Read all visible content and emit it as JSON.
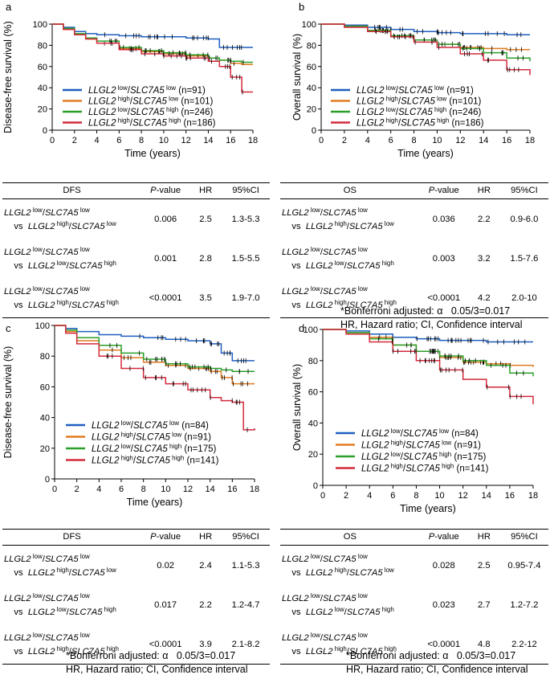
{
  "chart_data": [
    {
      "panel": "a",
      "type": "line",
      "ylabel": "Disease-free survival (%)",
      "xlabel": "Time (years)",
      "xlim": [
        0,
        18
      ],
      "ylim": [
        0,
        100
      ],
      "xticks": [
        "0",
        "2",
        "4",
        "6",
        "8",
        "10",
        "12",
        "14",
        "16",
        "18"
      ],
      "yticks": [
        "0",
        "20",
        "40",
        "60",
        "80",
        "100"
      ],
      "series": [
        {
          "name": "LLGL2 low/SLC7A5 low (n=91)",
          "gene1": "LLGL2",
          "s1": "low",
          "gene2": "SLC7A5",
          "s2": "low",
          "n": "(n=91)",
          "color": "#1f5fbf",
          "x": [
            0,
            1,
            2,
            3,
            4,
            6,
            8,
            10,
            12,
            14,
            15,
            16,
            17,
            18
          ],
          "y": [
            100,
            97,
            93,
            91,
            90,
            89,
            88,
            88,
            87,
            86,
            78,
            78,
            78,
            78
          ]
        },
        {
          "name": "LLGL2 high/SLC7A5 low (n=101)",
          "gene1": "LLGL2",
          "s1": "high",
          "gene2": "SLC7A5",
          "s2": "low",
          "n": "(n=101)",
          "color": "#e07b20",
          "x": [
            0,
            1,
            2,
            3,
            4,
            6,
            8,
            10,
            12,
            14,
            15,
            16,
            17,
            18
          ],
          "y": [
            100,
            95,
            90,
            86,
            82,
            77,
            74,
            72,
            70,
            68,
            66,
            63,
            62,
            62
          ]
        },
        {
          "name": "LLGL2 low/SLC7A5 high (n=246)",
          "gene1": "LLGL2",
          "s1": "low",
          "gene2": "SLC7A5",
          "s2": "high",
          "n": "(n=246)",
          "color": "#2aa02a",
          "x": [
            0,
            1,
            2,
            3,
            4,
            6,
            8,
            10,
            12,
            14,
            15,
            16,
            17,
            18
          ],
          "y": [
            100,
            96,
            91,
            87,
            84,
            78,
            75,
            73,
            71,
            68,
            66,
            65,
            64,
            64
          ]
        },
        {
          "name": "LLGL2 high/SLC7A5 high (n=186)",
          "gene1": "LLGL2",
          "s1": "high",
          "gene2": "SLC7A5",
          "s2": "high",
          "n": "(n=186)",
          "color": "#d42a3c",
          "x": [
            0,
            1,
            2,
            3,
            4,
            6,
            8,
            10,
            12,
            14,
            15,
            16,
            17,
            18
          ],
          "y": [
            100,
            95,
            90,
            86,
            82,
            76,
            72,
            70,
            68,
            65,
            60,
            50,
            36,
            36
          ]
        }
      ]
    },
    {
      "panel": "b",
      "type": "line",
      "ylabel": "Overall survival (%)",
      "xlabel": "Time (years)",
      "xlim": [
        0,
        18
      ],
      "ylim": [
        0,
        100
      ],
      "xticks": [
        "0",
        "2",
        "4",
        "6",
        "8",
        "10",
        "12",
        "14",
        "16",
        "18"
      ],
      "yticks": [
        "0",
        "20",
        "40",
        "60",
        "80",
        "100"
      ],
      "series": [
        {
          "name": "LLGL2 low/SLC7A5 low (n=91)",
          "gene1": "LLGL2",
          "s1": "low",
          "gene2": "SLC7A5",
          "s2": "low",
          "n": "(n=91)",
          "color": "#1f5fbf",
          "x": [
            0,
            2,
            4,
            6,
            8,
            10,
            12,
            14,
            16,
            18
          ],
          "y": [
            100,
            99,
            97,
            95,
            93,
            92,
            91,
            91,
            90,
            90
          ]
        },
        {
          "name": "LLGL2 high/SLC7A5 low (n=101)",
          "gene1": "LLGL2",
          "s1": "high",
          "gene2": "SLC7A5",
          "s2": "low",
          "n": "(n=101)",
          "color": "#e07b20",
          "x": [
            0,
            2,
            4,
            6,
            8,
            10,
            12,
            14,
            16,
            18
          ],
          "y": [
            100,
            98,
            94,
            89,
            85,
            81,
            78,
            77,
            76,
            76
          ]
        },
        {
          "name": "LLGL2 low/SLC7A5 high (n=246)",
          "gene1": "LLGL2",
          "s1": "low",
          "gene2": "SLC7A5",
          "s2": "high",
          "n": "(n=246)",
          "color": "#2aa02a",
          "x": [
            0,
            2,
            4,
            6,
            8,
            10,
            12,
            14,
            16,
            18
          ],
          "y": [
            100,
            98,
            94,
            89,
            85,
            81,
            77,
            73,
            68,
            65
          ]
        },
        {
          "name": "LLGL2 high/SLC7A5 high (n=186)",
          "gene1": "LLGL2",
          "s1": "high",
          "gene2": "SLC7A5",
          "s2": "high",
          "n": "(n=186)",
          "color": "#d42a3c",
          "x": [
            0,
            2,
            4,
            6,
            8,
            10,
            12,
            14,
            16,
            18
          ],
          "y": [
            100,
            97,
            93,
            88,
            83,
            78,
            72,
            66,
            57,
            52
          ]
        }
      ]
    },
    {
      "panel": "c",
      "type": "line",
      "ylabel": "Disease-free survival (%)",
      "xlabel": "Time (years)",
      "xlim": [
        0,
        18
      ],
      "ylim": [
        0,
        100
      ],
      "xticks": [
        "0",
        "2",
        "4",
        "6",
        "8",
        "10",
        "12",
        "14",
        "16",
        "18"
      ],
      "yticks": [
        "0",
        "20",
        "40",
        "60",
        "80",
        "100"
      ],
      "series": [
        {
          "name": "LLGL2 low/SLC7A5 low (n=84)",
          "gene1": "LLGL2",
          "s1": "low",
          "gene2": "SLC7A5",
          "s2": "low",
          "n": "(n=84)",
          "color": "#1f5fbf",
          "x": [
            0,
            1,
            2,
            4,
            6,
            8,
            10,
            12,
            14,
            15,
            16,
            17,
            18
          ],
          "y": [
            100,
            98,
            96,
            94,
            93,
            92,
            91,
            90,
            88,
            82,
            77,
            77,
            77
          ]
        },
        {
          "name": "LLGL2 high/SLC7A5 low (n=91)",
          "gene1": "LLGL2",
          "s1": "high",
          "gene2": "SLC7A5",
          "s2": "low",
          "n": "(n=91)",
          "color": "#e07b20",
          "x": [
            0,
            1,
            2,
            4,
            6,
            8,
            10,
            12,
            14,
            15,
            16,
            17,
            18
          ],
          "y": [
            100,
            96,
            90,
            84,
            79,
            76,
            74,
            72,
            70,
            66,
            62,
            62,
            62
          ]
        },
        {
          "name": "LLGL2 low/SLC7A5 high (n=175)",
          "gene1": "LLGL2",
          "s1": "low",
          "gene2": "SLC7A5",
          "s2": "high",
          "n": "(n=175)",
          "color": "#2aa02a",
          "x": [
            0,
            1,
            2,
            4,
            6,
            8,
            10,
            12,
            14,
            15,
            16,
            17,
            18
          ],
          "y": [
            100,
            97,
            92,
            87,
            82,
            78,
            75,
            73,
            72,
            71,
            70,
            70,
            70
          ]
        },
        {
          "name": "LLGL2 high/SLC7A5 high (n=141)",
          "gene1": "LLGL2",
          "s1": "high",
          "gene2": "SLC7A5",
          "s2": "high",
          "n": "(n=141)",
          "color": "#d42a3c",
          "x": [
            0,
            1,
            2,
            4,
            6,
            8,
            10,
            12,
            14,
            15,
            16,
            17,
            18
          ],
          "y": [
            100,
            95,
            88,
            80,
            72,
            66,
            62,
            58,
            53,
            51,
            50,
            32,
            33
          ]
        }
      ]
    },
    {
      "panel": "d",
      "type": "line",
      "ylabel": "Overall survival (%)",
      "xlabel": "Time (years)",
      "xlim": [
        0,
        18
      ],
      "ylim": [
        0,
        100
      ],
      "xticks": [
        "0",
        "2",
        "4",
        "6",
        "8",
        "10",
        "12",
        "14",
        "16",
        "18"
      ],
      "yticks": [
        "0",
        "20",
        "40",
        "60",
        "80",
        "100"
      ],
      "series": [
        {
          "name": "LLGL2 low/SLC7A5 low (n=84)",
          "gene1": "LLGL2",
          "s1": "low",
          "gene2": "SLC7A5",
          "s2": "low",
          "n": "(n=84)",
          "color": "#1f5fbf",
          "x": [
            0,
            2,
            4,
            6,
            8,
            10,
            12,
            14,
            16,
            18
          ],
          "y": [
            100,
            99,
            97,
            95,
            94,
            93,
            93,
            92,
            92,
            92
          ]
        },
        {
          "name": "LLGL2 high/SLC7A5 low (n=91)",
          "gene1": "LLGL2",
          "s1": "high",
          "gene2": "SLC7A5",
          "s2": "low",
          "n": "(n=91)",
          "color": "#e07b20",
          "x": [
            0,
            2,
            4,
            6,
            8,
            10,
            12,
            14,
            16,
            18
          ],
          "y": [
            100,
            98,
            95,
            90,
            86,
            82,
            79,
            78,
            77,
            76
          ]
        },
        {
          "name": "LLGL2 low/SLC7A5 high (n=175)",
          "gene1": "LLGL2",
          "s1": "low",
          "gene2": "SLC7A5",
          "s2": "high",
          "n": "(n=175)",
          "color": "#2aa02a",
          "x": [
            0,
            2,
            4,
            6,
            8,
            10,
            12,
            14,
            16,
            18
          ],
          "y": [
            100,
            98,
            94,
            90,
            86,
            83,
            80,
            77,
            72,
            70
          ]
        },
        {
          "name": "LLGL2 high/SLC7A5 high (n=141)",
          "gene1": "LLGL2",
          "s1": "high",
          "gene2": "SLC7A5",
          "s2": "high",
          "n": "(n=141)",
          "color": "#d42a3c",
          "x": [
            0,
            2,
            4,
            6,
            8,
            10,
            12,
            14,
            16,
            18
          ],
          "y": [
            100,
            97,
            92,
            86,
            80,
            74,
            68,
            63,
            57,
            52
          ]
        }
      ]
    }
  ],
  "tables": {
    "a": {
      "headers": [
        "DFS",
        "P-value",
        "HR",
        "95%CI"
      ],
      "rows": [
        {
          "g1": "LLGL2",
          "s1": "low",
          "g2": "SLC7A5",
          "s2": "low",
          "vs": "vs",
          "g3": "LLGL2",
          "s3": "high",
          "g4": "SLC7A5",
          "s4": "low",
          "p": "0.006",
          "hr": "2.5",
          "ci": "1.3-5.3"
        },
        {
          "g1": "LLGL2",
          "s1": "low",
          "g2": "SLC7A5",
          "s2": "low",
          "vs": "vs",
          "g3": "LLGL2",
          "s3": "low",
          "g4": "SLC7A5",
          "s4": "high",
          "p": "0.001",
          "hr": "2.8",
          "ci": "1.5-5.5"
        },
        {
          "g1": "LLGL2",
          "s1": "low",
          "g2": "SLC7A5",
          "s2": "low",
          "vs": "vs",
          "g3": "LLGL2",
          "s3": "high",
          "g4": "SLC7A5",
          "s4": "high",
          "p": "<0.0001",
          "hr": "3.5",
          "ci": "1.9-7.0"
        }
      ]
    },
    "b": {
      "headers": [
        "OS",
        "P-value",
        "HR",
        "95%CI"
      ],
      "rows": [
        {
          "g1": "LLGL2",
          "s1": "low",
          "g2": "SLC7A5",
          "s2": "low",
          "vs": "vs",
          "g3": "LLGL2",
          "s3": "high",
          "g4": "SLC7A5",
          "s4": "low",
          "p": "0.036",
          "hr": "2.2",
          "ci": "0.9-6.0"
        },
        {
          "g1": "LLGL2",
          "s1": "low",
          "g2": "SLC7A5",
          "s2": "low",
          "vs": "vs",
          "g3": "LLGL2",
          "s3": "low",
          "g4": "SLC7A5",
          "s4": "high",
          "p": "0.003",
          "hr": "3.2",
          "ci": "1.5-7.6"
        },
        {
          "g1": "LLGL2",
          "s1": "low",
          "g2": "SLC7A5",
          "s2": "low",
          "vs": "vs",
          "g3": "LLGL2",
          "s3": "high",
          "g4": "SLC7A5",
          "s4": "high",
          "p": "<0.0001",
          "hr": "4.2",
          "ci": "2.0-10"
        }
      ]
    },
    "c": {
      "headers": [
        "DFS",
        "P-value",
        "HR",
        "95%CI"
      ],
      "rows": [
        {
          "g1": "LLGL2",
          "s1": "low",
          "g2": "SLC7A5",
          "s2": "low",
          "vs": "vs",
          "g3": "LLGL2",
          "s3": "high",
          "g4": "SLC7A5",
          "s4": "low",
          "p": "0.02",
          "hr": "2.4",
          "ci": "1.1-5.3"
        },
        {
          "g1": "LLGL2",
          "s1": "low",
          "g2": "SLC7A5",
          "s2": "low",
          "vs": "vs",
          "g3": "LLGL2",
          "s3": "low",
          "g4": "SLC7A5",
          "s4": "high",
          "p": "0.017",
          "hr": "2.2",
          "ci": "1.2-4.7"
        },
        {
          "g1": "LLGL2",
          "s1": "low",
          "g2": "SLC7A5",
          "s2": "low",
          "vs": "vs",
          "g3": "LLGL2",
          "s3": "high",
          "g4": "SLC7A5",
          "s4": "high",
          "p": "<0.0001",
          "hr": "3.9",
          "ci": "2.1-8.2"
        }
      ]
    },
    "d": {
      "headers": [
        "OS",
        "P-value",
        "HR",
        "95%CI"
      ],
      "rows": [
        {
          "g1": "LLGL2",
          "s1": "low",
          "g2": "SLC7A5",
          "s2": "low",
          "vs": "vs",
          "g3": "LLGL2",
          "s3": "high",
          "g4": "SLC7A5",
          "s4": "low",
          "p": "0.028",
          "hr": "2.5",
          "ci": "0.95-7.4"
        },
        {
          "g1": "LLGL2",
          "s1": "low",
          "g2": "SLC7A5",
          "s2": "low",
          "vs": "vs",
          "g3": "LLGL2",
          "s3": "low",
          "g4": "SLC7A5",
          "s4": "high",
          "p": "0.023",
          "hr": "2.7",
          "ci": "1.2-7.2"
        },
        {
          "g1": "LLGL2",
          "s1": "low",
          "g2": "SLC7A5",
          "s2": "low",
          "vs": "vs",
          "g3": "LLGL2",
          "s3": "high",
          "g4": "SLC7A5",
          "s4": "high",
          "p": "<0.0001",
          "hr": "4.8",
          "ci": "2.2-12"
        }
      ]
    }
  },
  "notes": {
    "line1": "*Bonferroni adjusted: α   0.05/3=0.017",
    "line2": "HR, Hazard ratio; CI, Confidence interval"
  }
}
